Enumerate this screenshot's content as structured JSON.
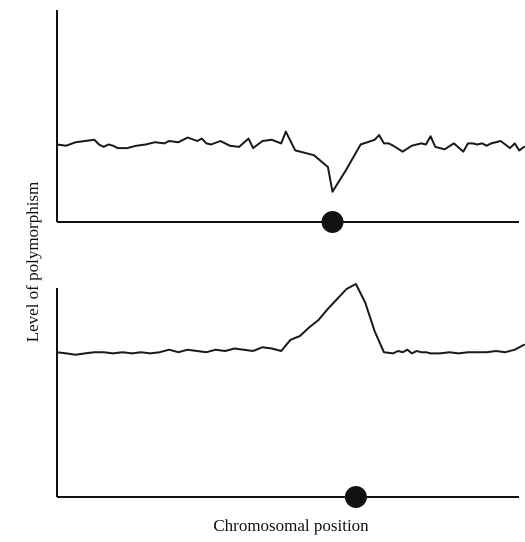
{
  "chart_data": {
    "ylabel": "Level of polymorphism",
    "xlabel": "Chromosomal position",
    "colors": {
      "line": "#1a1a1a",
      "axis": "#111111",
      "marker": "#111111"
    },
    "panels": [
      {
        "type": "line",
        "title": "",
        "xlim": [
          0,
          100
        ],
        "ylim": [
          0,
          100
        ],
        "grid": false,
        "marker_x": 59,
        "series": [
          {
            "name": "",
            "x": [
              0,
              2,
              4,
              6,
              8,
              9,
              10,
              11,
              12,
              13,
              15,
              17,
              19,
              21,
              23,
              24,
              26,
              28,
              30,
              31,
              32,
              33,
              35,
              37,
              39,
              41,
              42,
              44,
              46,
              48,
              49,
              51,
              55,
              58,
              59,
              62,
              65,
              68,
              69,
              70,
              71,
              72,
              74,
              76,
              78,
              79,
              80,
              81,
              83,
              85,
              87,
              88,
              89,
              90,
              91,
              92,
              93,
              95,
              96,
              97,
              98,
              99,
              100
            ],
            "y": [
              47,
              46,
              49,
              50,
              51,
              47,
              45,
              47,
              46,
              44,
              44,
              46,
              47,
              49,
              48,
              50,
              49,
              53,
              50,
              52,
              48,
              47,
              50,
              46,
              45,
              52,
              44,
              50,
              51,
              48,
              58,
              42,
              38,
              28,
              7,
              26,
              47,
              51,
              55,
              48,
              48,
              46,
              41,
              46,
              48,
              47,
              54,
              45,
              43,
              48,
              41,
              48,
              48,
              47,
              48,
              46,
              48,
              50,
              47,
              44,
              48,
              42,
              45
            ]
          }
        ]
      },
      {
        "type": "line",
        "title": "",
        "xlim": [
          0,
          100
        ],
        "ylim": [
          0,
          100
        ],
        "grid": false,
        "marker_x": 64,
        "series": [
          {
            "name": "",
            "x": [
              0,
              2,
              4,
              6,
              8,
              10,
              12,
              14,
              16,
              18,
              20,
              22,
              24,
              26,
              28,
              30,
              32,
              34,
              36,
              38,
              40,
              42,
              44,
              46,
              48,
              50,
              52,
              54,
              56,
              58,
              60,
              62,
              64,
              66,
              68,
              70,
              72,
              73,
              74,
              75,
              76,
              77,
              78,
              79,
              80,
              82,
              84,
              86,
              88,
              90,
              92,
              94,
              96,
              98,
              100
            ],
            "y": [
              45,
              44,
              43,
              44,
              45,
              45,
              44,
              45,
              44,
              45,
              44,
              45,
              47,
              45,
              47,
              46,
              45,
              47,
              46,
              48,
              47,
              46,
              49,
              48,
              46,
              55,
              58,
              65,
              71,
              80,
              88,
              96,
              100,
              85,
              62,
              45,
              44,
              46,
              45,
              47,
              44,
              46,
              45,
              45,
              44,
              44,
              45,
              44,
              45,
              45,
              45,
              46,
              45,
              47,
              51
            ]
          }
        ]
      }
    ]
  }
}
